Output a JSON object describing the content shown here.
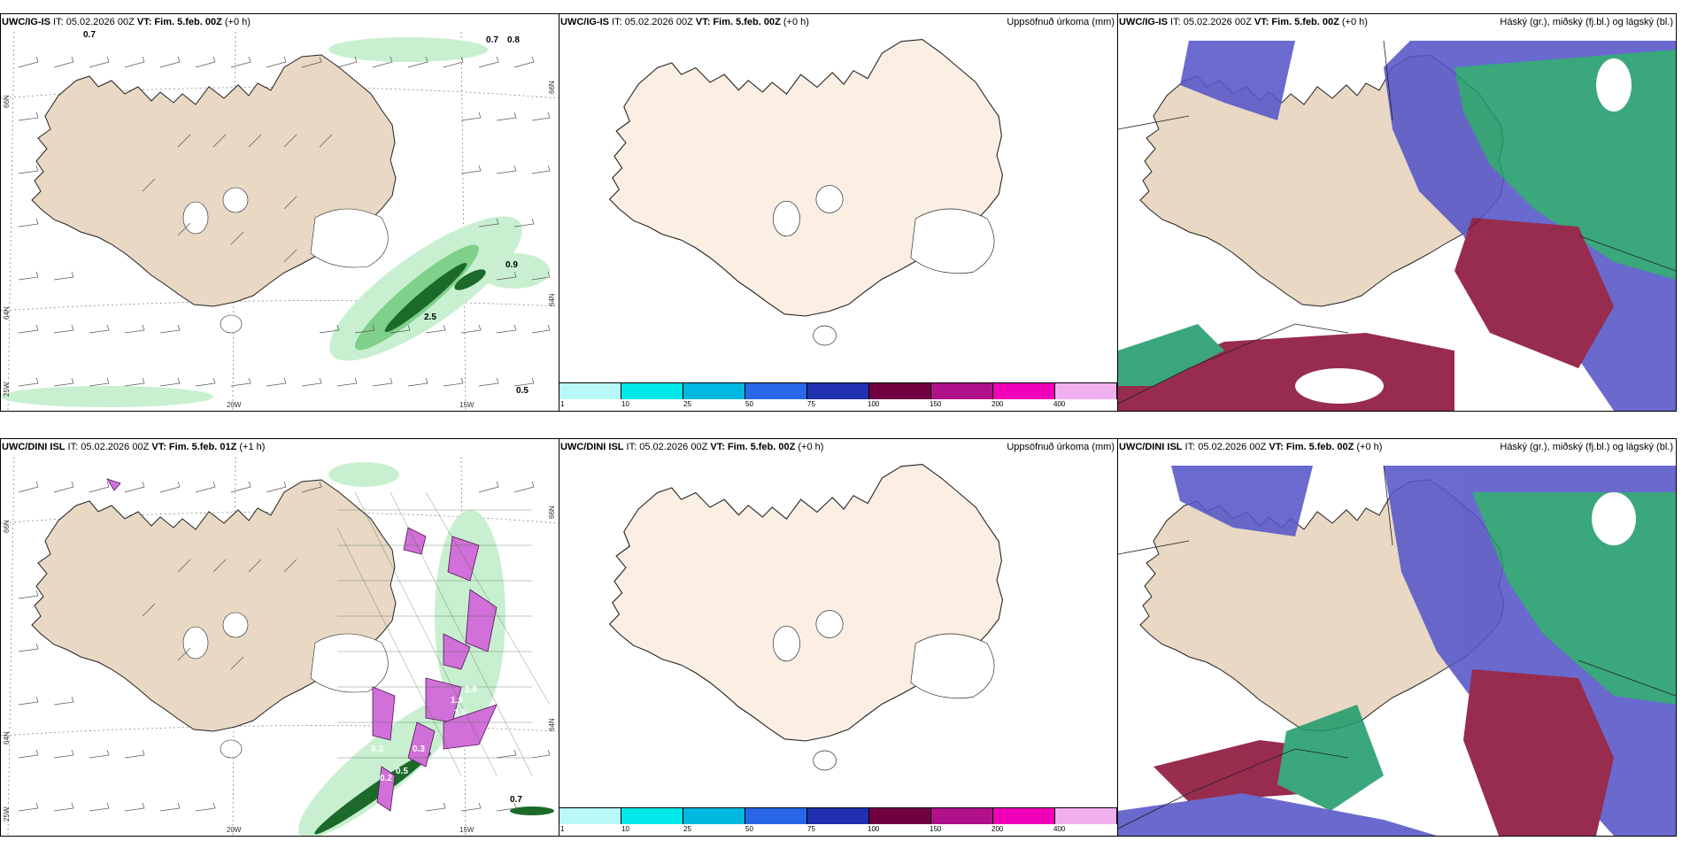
{
  "colors": {
    "land": "#e8d8c4",
    "land_light": "#fbeee2",
    "coast": "#222222",
    "precip_light": "#c8f0d0",
    "precip_mid": "#7fd08a",
    "precip_dark": "#1c6a2a",
    "pink": "#d070d8",
    "high_cloud": "#1f9c6c",
    "mid_cloud": "#5555c8",
    "low_cloud": "#8a1036"
  },
  "row1": {
    "left": {
      "model": "UWC/IG-IS",
      "it_text": " IT: 05.02.2026 00Z ",
      "vt_label": "VT: Fim. 5.feb. 00Z",
      "lead": " (+0 h)",
      "lon_labels": [
        "20W",
        "15W"
      ],
      "lat_labels": [
        "66N",
        "64N",
        "25W"
      ],
      "lat_labels_right": [
        "66N",
        "64N"
      ],
      "contour_labels": [
        "0.7",
        "0.7",
        "0.8",
        "0.9",
        "2.5",
        "0.5"
      ]
    },
    "middle": {
      "model": "UWC/IG-IS",
      "it_text": " IT: 05.02.2026 00Z ",
      "vt_label": "VT: Fim. 5.feb. 00Z",
      "lead": " (+0 h)",
      "right_title": "Uppsöfnuð úrkoma (mm)"
    },
    "right": {
      "model": "UWC/IG-IS",
      "it_text": " IT: 05.02.2026 00Z ",
      "vt_label": "VT: Fim. 5.feb. 00Z",
      "lead": " (+0 h)",
      "right_title": "Háský (gr.), miðský (fj.bl.) og lágský (bl.)"
    }
  },
  "row2": {
    "left": {
      "model": "UWC/DINI ISL",
      "it_text": " IT: 05.02.2026 00Z ",
      "vt_label": "VT: Fim. 5.feb. 01Z",
      "lead": " (+1 h)",
      "lon_labels": [
        "20W",
        "15W"
      ],
      "lat_labels": [
        "66N",
        "64N",
        "25W"
      ],
      "lat_labels_right": [
        "66N",
        "64N"
      ],
      "contour_labels": [
        "2.8",
        "1.9",
        "1.9",
        "0.3",
        "0.5",
        "0.2",
        "0.7",
        "0.3"
      ]
    },
    "middle": {
      "model": "UWC/DINI ISL",
      "it_text": " IT: 05.02.2026 00Z ",
      "vt_label": "VT: Fim. 5.feb. 00Z",
      "lead": " (+0 h)",
      "right_title": "Uppsöfnuð úrkoma (mm)"
    },
    "right": {
      "model": "UWC/DINI ISL",
      "it_text": " IT: 05.02.2026 00Z ",
      "vt_label": "VT: Fim. 5.feb. 00Z",
      "lead": " (+0 h)",
      "right_title": "Háský (gr.), miðský (fj.bl.) og lágský (bl.)"
    }
  },
  "precip_legend": {
    "colors": [
      "#b8f8f8",
      "#00e8e8",
      "#00b8e0",
      "#2868e8",
      "#2030b0",
      "#700040",
      "#b0108a",
      "#f000b8",
      "#f0b0f0"
    ],
    "ticks": [
      "1",
      "10",
      "25",
      "50",
      "75",
      "100",
      "150",
      "200",
      "400"
    ]
  }
}
